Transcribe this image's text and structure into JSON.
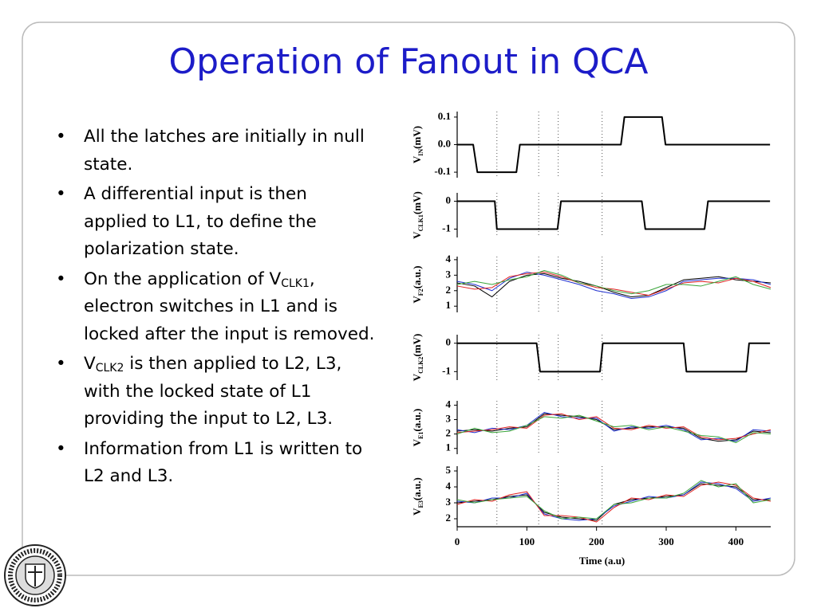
{
  "header": {
    "title": "Operation of Fanout in QCA"
  },
  "body": {
    "bullets": [
      [
        {
          "text": "All the latches are initially in null state."
        }
      ],
      [
        {
          "text": "A differential input is then applied to L1, to define the polarization state."
        }
      ],
      [
        {
          "text": "On the application of V"
        },
        {
          "sub": "CLK1"
        },
        {
          "text": ", electron switches in L1 and is locked after the input is removed."
        }
      ],
      [
        {
          "text": "V"
        },
        {
          "sub": "CLK2"
        },
        {
          "text": " is then applied to L2, L3, with the locked state of L1 providing the input to L2, L3."
        }
      ],
      [
        {
          "text": "Information from L1 is written to L2 and L3."
        }
      ]
    ]
  },
  "chart_data": [
    {
      "type": "line",
      "ylabel": {
        "text": "V",
        "sub": "IN",
        "unit": "(mV)"
      },
      "xlim": [
        0,
        450
      ],
      "ylim": [
        -0.12,
        0.12
      ],
      "yticks": [
        -0.1,
        {
          "value": 0,
          "label": "0.0"
        },
        0.1
      ],
      "vlines": [
        57,
        117,
        145,
        208
      ],
      "x": [
        0,
        23,
        29,
        85,
        90,
        235,
        240,
        294,
        299,
        449
      ],
      "series": [
        {
          "color": "#000000",
          "values": [
            0,
            0,
            -0.1,
            -0.1,
            0,
            0,
            0.1,
            0.1,
            0,
            0
          ]
        }
      ]
    },
    {
      "type": "line",
      "ylabel": {
        "text": "V",
        "sub": "CLK1",
        "unit": "(mV)"
      },
      "xlim": [
        0,
        450
      ],
      "ylim": [
        -1.3,
        0.3
      ],
      "yticks": [
        -1,
        0
      ],
      "vlines": [
        57,
        117,
        145,
        208
      ],
      "x": [
        0,
        54,
        57,
        144,
        149,
        265,
        270,
        355,
        360,
        449
      ],
      "series": [
        {
          "color": "#000000",
          "values": [
            0,
            0,
            -1,
            -1,
            0,
            0,
            -1,
            -1,
            0,
            0
          ]
        }
      ]
    },
    {
      "type": "line",
      "ylabel": {
        "text": "V",
        "sub": "F2",
        "unit": "(a.u.)"
      },
      "xlim": [
        0,
        450
      ],
      "ylim": [
        0.6,
        4.2
      ],
      "yticks": [
        1,
        2,
        3,
        4
      ],
      "vlines": [
        57,
        117,
        145,
        208
      ],
      "x": [
        0,
        25,
        50,
        75,
        100,
        125,
        150,
        175,
        200,
        225,
        250,
        275,
        300,
        325,
        350,
        375,
        400,
        425,
        450
      ],
      "series": [
        {
          "color": "#000000",
          "values": [
            2.5,
            2.3,
            1.6,
            2.6,
            3.0,
            3.1,
            2.8,
            2.6,
            2.3,
            1.9,
            1.6,
            1.7,
            2.2,
            2.7,
            2.8,
            2.9,
            2.7,
            2.6,
            2.5
          ]
        },
        {
          "color": "#1f2fd0",
          "values": [
            2.6,
            2.4,
            2.0,
            2.8,
            3.2,
            3.0,
            2.7,
            2.4,
            2.0,
            1.8,
            1.5,
            1.6,
            2.0,
            2.6,
            2.7,
            2.8,
            2.8,
            2.7,
            2.4
          ]
        },
        {
          "color": "#e02020",
          "values": [
            2.3,
            2.1,
            2.2,
            2.9,
            3.1,
            3.2,
            2.9,
            2.5,
            2.2,
            2.1,
            1.9,
            1.7,
            2.1,
            2.5,
            2.6,
            2.5,
            2.8,
            2.6,
            2.2
          ]
        },
        {
          "color": "#3aa53a",
          "values": [
            2.4,
            2.6,
            2.4,
            2.7,
            2.9,
            3.3,
            3.0,
            2.5,
            2.3,
            2.0,
            1.8,
            2.0,
            2.4,
            2.4,
            2.3,
            2.6,
            2.9,
            2.4,
            2.1
          ]
        }
      ]
    },
    {
      "type": "line",
      "ylabel": {
        "text": "V",
        "sub": "CLK2",
        "unit": "(mV)"
      },
      "xlim": [
        0,
        450
      ],
      "ylim": [
        -1.3,
        0.3
      ],
      "yticks": [
        -1,
        0
      ],
      "vlines": [
        57,
        117,
        145,
        208
      ],
      "x": [
        0,
        114,
        119,
        205,
        209,
        325,
        329,
        415,
        419,
        449
      ],
      "series": [
        {
          "color": "#000000",
          "values": [
            0,
            0,
            -1,
            -1,
            0,
            0,
            -1,
            -1,
            0,
            0
          ]
        }
      ]
    },
    {
      "type": "line",
      "ylabel": {
        "text": "V",
        "sub": "E1",
        "unit": "(a.u.)"
      },
      "xlim": [
        0,
        450
      ],
      "ylim": [
        0.6,
        4.3
      ],
      "yticks": [
        1,
        2,
        3,
        4
      ],
      "vlines": [
        57,
        117,
        145,
        208
      ],
      "x": [
        0,
        25,
        50,
        75,
        100,
        125,
        150,
        175,
        200,
        225,
        250,
        275,
        300,
        325,
        350,
        375,
        400,
        425,
        450
      ],
      "series": [
        {
          "color": "#000000",
          "values": [
            2.2,
            2.3,
            2.2,
            2.4,
            2.5,
            3.4,
            3.3,
            3.2,
            3.0,
            2.3,
            2.4,
            2.5,
            2.5,
            2.4,
            1.7,
            1.5,
            1.6,
            2.2,
            2.1
          ]
        },
        {
          "color": "#1f2fd0",
          "values": [
            2.3,
            2.1,
            2.4,
            2.3,
            2.6,
            3.5,
            3.2,
            3.1,
            3.1,
            2.2,
            2.5,
            2.4,
            2.6,
            2.3,
            1.6,
            1.7,
            1.5,
            2.3,
            2.2
          ]
        },
        {
          "color": "#e02020",
          "values": [
            2.1,
            2.2,
            2.3,
            2.5,
            2.4,
            3.3,
            3.4,
            3.0,
            3.2,
            2.4,
            2.3,
            2.6,
            2.4,
            2.5,
            1.8,
            1.6,
            1.7,
            2.0,
            2.3
          ]
        },
        {
          "color": "#3aa53a",
          "values": [
            2.0,
            2.4,
            2.1,
            2.2,
            2.6,
            3.2,
            3.1,
            3.3,
            2.9,
            2.5,
            2.6,
            2.3,
            2.5,
            2.2,
            1.9,
            1.8,
            1.4,
            2.1,
            2.0
          ]
        }
      ]
    },
    {
      "type": "line",
      "ylabel": {
        "text": "V",
        "sub": "E3",
        "unit": "(a.u.)"
      },
      "xlabel": "Time (a.u)",
      "xlim": [
        0,
        450
      ],
      "xticks": [
        0,
        100,
        200,
        300,
        400
      ],
      "ylim": [
        1.5,
        5.3
      ],
      "yticks": [
        2,
        3,
        4,
        5
      ],
      "vlines": [
        57,
        117,
        145,
        208
      ],
      "x": [
        0,
        25,
        50,
        75,
        100,
        125,
        150,
        175,
        200,
        225,
        250,
        275,
        300,
        325,
        350,
        375,
        400,
        425,
        450
      ],
      "series": [
        {
          "color": "#000000",
          "values": [
            3.0,
            3.1,
            3.2,
            3.4,
            3.5,
            2.4,
            2.1,
            2.0,
            1.9,
            2.9,
            3.2,
            3.3,
            3.4,
            3.5,
            4.2,
            4.1,
            4.0,
            3.2,
            3.2
          ]
        },
        {
          "color": "#1f2fd0",
          "values": [
            3.1,
            3.0,
            3.3,
            3.3,
            3.6,
            2.3,
            2.0,
            1.9,
            2.0,
            2.8,
            3.1,
            3.4,
            3.3,
            3.5,
            4.3,
            4.2,
            3.9,
            3.1,
            3.3
          ]
        },
        {
          "color": "#e02020",
          "values": [
            2.9,
            3.2,
            3.1,
            3.5,
            3.7,
            2.2,
            2.2,
            2.1,
            1.8,
            2.7,
            3.3,
            3.2,
            3.5,
            3.4,
            4.1,
            4.3,
            4.1,
            3.3,
            3.1
          ]
        },
        {
          "color": "#3aa53a",
          "values": [
            3.2,
            3.0,
            3.2,
            3.3,
            3.4,
            2.5,
            2.0,
            2.1,
            2.0,
            2.9,
            3.0,
            3.3,
            3.3,
            3.6,
            4.4,
            4.0,
            4.2,
            3.0,
            3.2
          ]
        }
      ]
    }
  ]
}
